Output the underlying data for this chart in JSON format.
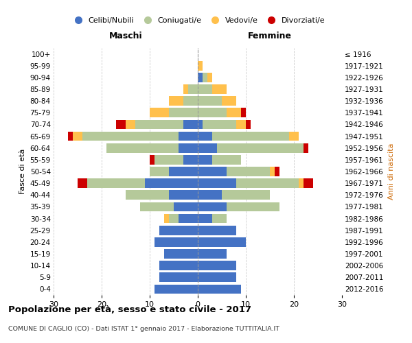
{
  "age_groups": [
    "0-4",
    "5-9",
    "10-14",
    "15-19",
    "20-24",
    "25-29",
    "30-34",
    "35-39",
    "40-44",
    "45-49",
    "50-54",
    "55-59",
    "60-64",
    "65-69",
    "70-74",
    "75-79",
    "80-84",
    "85-89",
    "90-94",
    "95-99",
    "100+"
  ],
  "birth_years": [
    "2012-2016",
    "2007-2011",
    "2002-2006",
    "1997-2001",
    "1992-1996",
    "1987-1991",
    "1982-1986",
    "1977-1981",
    "1972-1976",
    "1967-1971",
    "1962-1966",
    "1957-1961",
    "1952-1956",
    "1947-1951",
    "1942-1946",
    "1937-1941",
    "1932-1936",
    "1927-1931",
    "1922-1926",
    "1917-1921",
    "≤ 1916"
  ],
  "males": {
    "celibi": [
      9,
      8,
      8,
      7,
      9,
      8,
      4,
      5,
      6,
      11,
      6,
      3,
      4,
      4,
      3,
      0,
      0,
      0,
      0,
      0,
      0
    ],
    "coniugati": [
      0,
      0,
      0,
      0,
      0,
      0,
      2,
      7,
      9,
      12,
      4,
      6,
      15,
      20,
      10,
      6,
      3,
      2,
      0,
      0,
      0
    ],
    "vedovi": [
      0,
      0,
      0,
      0,
      0,
      0,
      1,
      0,
      0,
      0,
      0,
      0,
      0,
      2,
      2,
      4,
      3,
      1,
      0,
      0,
      0
    ],
    "divorziati": [
      0,
      0,
      0,
      0,
      0,
      0,
      0,
      0,
      0,
      2,
      0,
      1,
      0,
      1,
      2,
      0,
      0,
      0,
      0,
      0,
      0
    ]
  },
  "females": {
    "nubili": [
      9,
      8,
      8,
      6,
      10,
      8,
      3,
      6,
      5,
      8,
      6,
      3,
      4,
      3,
      1,
      0,
      0,
      0,
      1,
      0,
      0
    ],
    "coniugate": [
      0,
      0,
      0,
      0,
      0,
      0,
      3,
      11,
      10,
      13,
      9,
      6,
      18,
      16,
      7,
      6,
      5,
      3,
      1,
      0,
      0
    ],
    "vedove": [
      0,
      0,
      0,
      0,
      0,
      0,
      0,
      0,
      0,
      1,
      1,
      0,
      0,
      2,
      2,
      3,
      3,
      3,
      1,
      1,
      0
    ],
    "divorziate": [
      0,
      0,
      0,
      0,
      0,
      0,
      0,
      0,
      0,
      2,
      1,
      0,
      1,
      0,
      1,
      1,
      0,
      0,
      0,
      0,
      0
    ]
  },
  "colors": {
    "celibi": "#4472c4",
    "coniugati": "#b5c99a",
    "vedovi": "#ffc04c",
    "divorziati": "#cc0000"
  },
  "xlim": 30,
  "xlabel_left": "Maschi",
  "xlabel_right": "Femmine",
  "ylabel_left": "Fasce di età",
  "ylabel_right": "Anni di nascita",
  "title": "Popolazione per età, sesso e stato civile - 2017",
  "subtitle": "COMUNE DI CAGLIO (CO) - Dati ISTAT 1° gennaio 2017 - Elaborazione TUTTITALIA.IT",
  "legend_labels": [
    "Celibi/Nubili",
    "Coniugati/e",
    "Vedovi/e",
    "Divorziati/e"
  ],
  "background_color": "#ffffff",
  "grid_color": "#cccccc"
}
